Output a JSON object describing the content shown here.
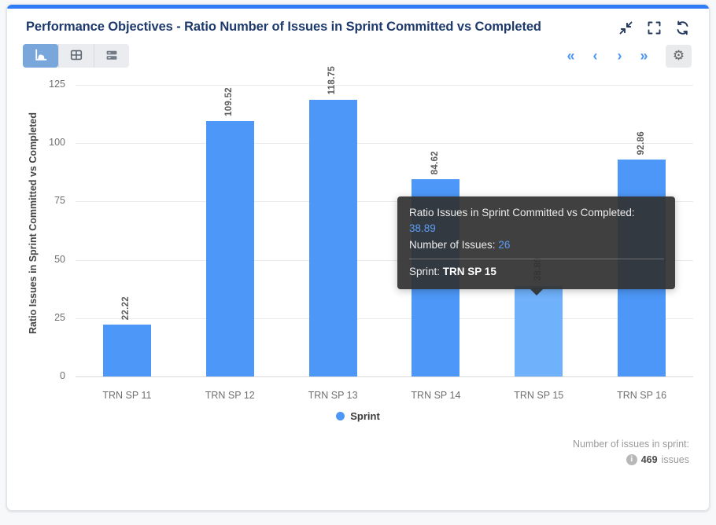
{
  "header": {
    "title": "Performance Objectives - Ratio Number of Issues in Sprint Committed vs Completed",
    "icons": [
      "collapse-icon",
      "fullscreen-icon",
      "refresh-icon"
    ]
  },
  "toolbar": {
    "views": [
      {
        "name": "chart-view",
        "icon": "bar-chart-icon",
        "selected": true
      },
      {
        "name": "table-view",
        "icon": "table-icon",
        "selected": false
      },
      {
        "name": "list-view",
        "icon": "stacked-rows-icon",
        "selected": false
      }
    ],
    "pagination": {
      "first": "«",
      "prev": "‹",
      "next": "›",
      "last": "»"
    },
    "settings_icon": "gear-icon"
  },
  "chart_data": {
    "type": "bar",
    "title": "",
    "categories": [
      "TRN SP 11",
      "TRN SP 12",
      "TRN SP 13",
      "TRN SP 14",
      "TRN SP 15",
      "TRN SP 16"
    ],
    "values": [
      22.22,
      109.52,
      118.75,
      84.62,
      38.89,
      92.86
    ],
    "value_labels": [
      "22.22",
      "109.52",
      "118.75",
      "84.62",
      "38.89",
      "92.86"
    ],
    "xlabel": "Sprint",
    "ylabel": "Ratio Issues in Sprint Committed vs Completed",
    "ylim": [
      0,
      125
    ],
    "yticks": [
      0,
      25,
      50,
      75,
      100,
      125
    ],
    "grid": true,
    "legend_position": "bottom",
    "legend": [
      {
        "label": "Sprint",
        "color": "#4d97f8"
      }
    ],
    "bar_color": "#4d97f8",
    "bar_color_highlight": "#6fb1fb",
    "highlighted_index": 4
  },
  "tooltip": {
    "ratio_label": "Ratio Issues in Sprint Committed vs Completed:",
    "ratio_value": "38.89",
    "issues_label": "Number of Issues:",
    "issues_value": "26",
    "sprint_label": "Sprint:",
    "sprint_value": "TRN SP 15"
  },
  "footer": {
    "label": "Number of issues in sprint:",
    "count": "469",
    "suffix": "issues",
    "info_icon": "info-icon"
  },
  "colors": {
    "accent_top": "#2e7cf6",
    "title_text": "#1e3a6d",
    "pagination_blue": "#4b97f2",
    "tooltip_background": "#323232",
    "tooltip_value_blue": "#5b9cf5"
  }
}
